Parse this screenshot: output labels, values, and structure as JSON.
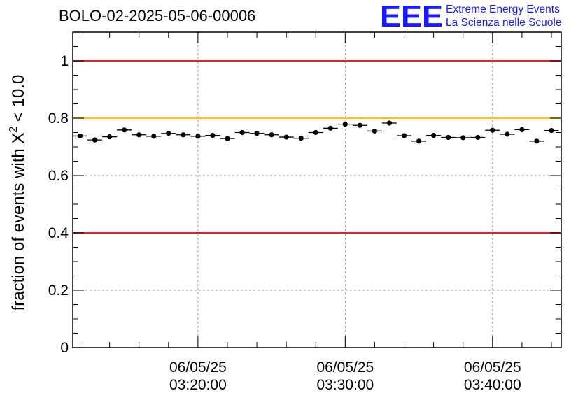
{
  "title": "BOLO-02-2025-05-06-00006",
  "logo": {
    "mark": "EEE",
    "line1": "Extreme Energy Events",
    "line2": "La Scienza nelle Scuole",
    "color": "#1a1aff"
  },
  "chart_data": {
    "type": "scatter",
    "ylabel_prefix": "fraction of events with ",
    "ylabel_symbol": "X",
    "ylabel_exponent": "2",
    "ylabel_suffix": " < 10.0",
    "ylim": [
      0,
      1.1
    ],
    "yticks": [
      0,
      0.2,
      0.4,
      0.6,
      0.8,
      1
    ],
    "ytick_labels": [
      "0",
      "0.2",
      "0.4",
      "0.6",
      "0.8",
      "1"
    ],
    "xlim": [
      "03:11:30",
      "03:44:40"
    ],
    "xticks": [
      {
        "time": "03:20:00",
        "date": "06/05/25",
        "clock": "03:20:00"
      },
      {
        "time": "03:30:00",
        "date": "06/05/25",
        "clock": "03:30:00"
      },
      {
        "time": "03:40:00",
        "date": "06/05/25",
        "clock": "03:40:00"
      }
    ],
    "minor_tick_interval_s": 120,
    "grid": true,
    "reference_lines": [
      {
        "y": 1.0,
        "color": "#e8231f"
      },
      {
        "y": 0.8,
        "color": "#ffc20e"
      },
      {
        "y": 0.4,
        "color": "#e8231f"
      }
    ],
    "bin_width_s": 60,
    "x": [
      "03:12:00",
      "03:13:00",
      "03:14:00",
      "03:15:00",
      "03:16:00",
      "03:17:00",
      "03:18:00",
      "03:19:00",
      "03:20:00",
      "03:21:00",
      "03:22:00",
      "03:23:00",
      "03:24:00",
      "03:25:00",
      "03:26:00",
      "03:27:00",
      "03:28:00",
      "03:29:00",
      "03:30:00",
      "03:31:00",
      "03:32:00",
      "03:33:00",
      "03:34:00",
      "03:35:00",
      "03:36:00",
      "03:37:00",
      "03:38:00",
      "03:39:00",
      "03:40:00",
      "03:41:00",
      "03:42:00",
      "03:43:00",
      "03:44:00"
    ],
    "values": [
      0.738,
      0.724,
      0.735,
      0.759,
      0.742,
      0.737,
      0.747,
      0.742,
      0.737,
      0.74,
      0.729,
      0.75,
      0.747,
      0.742,
      0.734,
      0.73,
      0.75,
      0.765,
      0.779,
      0.775,
      0.755,
      0.783,
      0.739,
      0.72,
      0.74,
      0.733,
      0.732,
      0.733,
      0.758,
      0.744,
      0.76,
      0.72,
      0.757
    ],
    "marker_color": "#000000"
  }
}
